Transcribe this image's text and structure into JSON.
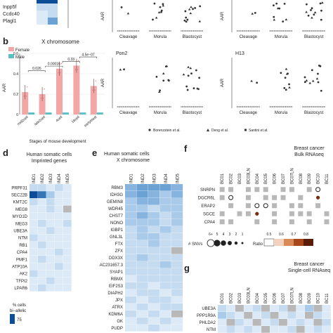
{
  "panel_letters": {
    "b": "b",
    "d": "d",
    "e": "e",
    "f": "f",
    "g": "g"
  },
  "top_heat_genes": [
    "Inpp5f",
    "Ccdc40",
    "Plagl1"
  ],
  "colors": {
    "female": "#f2a6a6",
    "male": "#5bbfc8",
    "heat_dark": "#0b4d96",
    "heat_light": "#eef5fc",
    "na_grey": "#b8b8b8",
    "ratio_dark": "#5a1e08"
  },
  "aar_panels": {
    "ylabel": "AAR",
    "x_categories": [
      "Cleavage",
      "Morula",
      "Blastocyst"
    ],
    "titles": {
      "pon2": "Pon2",
      "h13": "H13"
    },
    "legend": [
      "Borenzstein et al.",
      "Deng et al.",
      "Santini et al."
    ]
  },
  "panel_b": {
    "title": "X chromosome",
    "legend": [
      "Female",
      "Male"
    ],
    "ylabel": "AAR",
    "xlabel": "Stages of mouse development",
    "pvalues": [
      "4.5e−07",
      "0.33",
      "0.00016",
      "0.026"
    ]
  },
  "chart_data": [
    {
      "type": "bar",
      "title": "X chromosome",
      "xlabel": "Stages of mouse development",
      "ylabel": "AAR",
      "categories": [
        "mid2cell",
        "late2cell",
        "4cell",
        "16cell",
        "earlyblast"
      ],
      "series": [
        {
          "name": "Female",
          "values": [
            0.22,
            0.2,
            0.45,
            0.48,
            0.28
          ]
        },
        {
          "name": "Male",
          "values": [
            0.02,
            0.02,
            0.02,
            0.02,
            0.02
          ]
        }
      ],
      "ylim": [
        0,
        0.6
      ]
    }
  ],
  "panel_d": {
    "title": [
      "Human somatic cells",
      "Imprinted genes"
    ],
    "columns": [
      "IND1",
      "IND2",
      "IND3",
      "IND4",
      "IND5"
    ],
    "genes": [
      "PRPF31",
      "SEC22B",
      "KMT2C",
      "MEG8",
      "MYO1D",
      "MEG3",
      "UBE3A",
      "NTM",
      "RB1",
      "CPA4",
      "PMF1",
      "ATP10A",
      "AK2",
      "TFPI2",
      "LPAR6"
    ],
    "cells": [
      [
        2,
        2,
        1,
        2,
        1
      ],
      [
        9,
        7,
        3,
        1,
        1
      ],
      [
        2,
        1,
        2,
        1,
        1
      ],
      [
        1,
        1,
        2,
        1,
        0
      ],
      [
        1,
        1,
        1,
        1,
        1
      ],
      [
        1,
        2,
        1,
        1,
        2
      ],
      [
        1,
        1,
        2,
        1,
        1
      ],
      [
        2,
        1,
        1,
        1,
        1
      ],
      [
        1,
        2,
        1,
        1,
        1
      ],
      [
        1,
        1,
        1,
        2,
        1
      ],
      [
        1,
        2,
        1,
        1,
        1
      ],
      [
        1,
        1,
        1,
        2,
        1
      ],
      [
        2,
        1,
        1,
        1,
        1
      ],
      [
        1,
        1,
        2,
        1,
        1
      ],
      [
        1,
        2,
        1,
        1,
        1
      ]
    ],
    "legend_title": [
      "% cells",
      "bi−allelic"
    ],
    "legend_value": "75"
  },
  "panel_e": {
    "title": [
      "Human somatic cells",
      "X chromosome"
    ],
    "columns": [
      "IND1",
      "IND2",
      "IND3",
      "IND4",
      "IND5"
    ],
    "genes": [
      "RBM3",
      "IDH3G",
      "GEMIN8",
      "WDR45",
      "CHST7",
      "NONO",
      "IGBP1",
      "GNL3L",
      "FTX",
      "ZFX",
      "DDX3X",
      "AC231657.3",
      "SYAP1",
      "RBMX",
      "EIF2S3",
      "DIAPH2",
      "JPX",
      "ATRX",
      "KDM6A",
      "GK",
      "PUDP"
    ],
    "cells": [
      [
        4,
        5,
        5,
        5,
        4
      ],
      [
        4,
        5,
        4,
        3,
        4
      ],
      [
        3,
        4,
        4,
        3,
        3
      ],
      [
        3,
        3,
        2,
        3,
        3
      ],
      [
        3,
        4,
        3,
        2,
        3
      ],
      [
        3,
        3,
        3,
        2,
        3
      ],
      [
        2,
        3,
        2,
        3,
        2
      ],
      [
        2,
        3,
        3,
        2,
        2
      ],
      [
        2,
        2,
        3,
        2,
        2
      ],
      [
        2,
        2,
        2,
        2,
        0
      ],
      [
        2,
        3,
        2,
        2,
        2
      ],
      [
        2,
        2,
        2,
        3,
        2
      ],
      [
        2,
        2,
        2,
        2,
        2
      ],
      [
        1,
        2,
        2,
        2,
        2
      ],
      [
        2,
        2,
        1,
        2,
        2
      ],
      [
        1,
        2,
        2,
        1,
        2
      ],
      [
        2,
        1,
        2,
        2,
        1
      ],
      [
        1,
        2,
        1,
        2,
        2
      ],
      [
        2,
        1,
        2,
        1,
        0
      ],
      [
        1,
        2,
        1,
        2,
        1
      ],
      [
        1,
        1,
        2,
        1,
        1
      ]
    ]
  },
  "panel_f": {
    "title": [
      "Breast cancer",
      "Bulk RNAseq"
    ],
    "columns": [
      "BC01",
      "BC02",
      "BC03",
      "BC03LN",
      "BC04",
      "BC05",
      "BC06",
      "BC07",
      "BC07LN",
      "BC08",
      "BC09",
      "BC10",
      "BC11"
    ],
    "genes": [
      "SNRPN",
      "DGCR6L",
      "ERAP2",
      "SGCE",
      "CPA4"
    ],
    "snv_label": "# SNVs",
    "snv_sizes": [
      "6+",
      "5",
      "4",
      "3",
      "2",
      "1"
    ],
    "ratio_label": "Ratio",
    "ratio_ticks": [
      "0.5",
      "0.6",
      "0.7",
      "0.8"
    ]
  },
  "panel_g": {
    "title": [
      "Breast cancer",
      "Single-cell RNAseq"
    ],
    "columns": [
      "BC01",
      "BC02",
      "BC03",
      "BC03LN",
      "BC04",
      "BC05",
      "BC06",
      "BC07",
      "BC07LN",
      "BC08",
      "BC09",
      "BC10",
      "BC11"
    ],
    "genes": [
      "UBE3A",
      "PPP1R9A",
      "PHLDA2",
      "NTM"
    ]
  }
}
